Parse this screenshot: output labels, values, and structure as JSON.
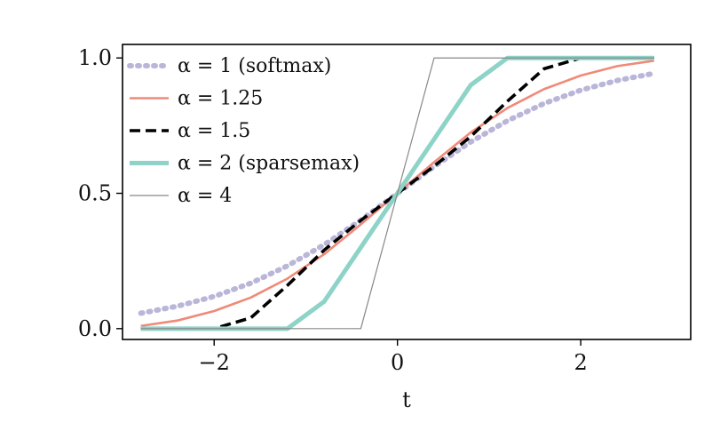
{
  "chart_data": {
    "type": "line",
    "title": "",
    "xlabel": "t",
    "ylabel": "",
    "xlim": [
      -3.0,
      3.2
    ],
    "ylim": [
      -0.04,
      1.05
    ],
    "xticks": [
      -2,
      0,
      2
    ],
    "xtick_labels": [
      "−2",
      "0",
      "2"
    ],
    "yticks": [
      0.0,
      0.5,
      1.0
    ],
    "ytick_labels": [
      "0.0",
      "0.5",
      "1.0"
    ],
    "grid": false,
    "legend_position": "top-left",
    "x": [
      -2.8,
      -2.4,
      -2.0,
      -1.6,
      -1.2,
      -0.8,
      -0.4,
      0.0,
      0.4,
      0.8,
      1.2,
      1.6,
      2.0,
      2.4,
      2.8
    ],
    "series": [
      {
        "name": "α = 1 (softmax)",
        "color": "#b9b6d8",
        "style": "dotted",
        "values": [
          0.057,
          0.083,
          0.119,
          0.168,
          0.232,
          0.31,
          0.401,
          0.5,
          0.599,
          0.69,
          0.768,
          0.832,
          0.881,
          0.917,
          0.943
        ]
      },
      {
        "name": "α = 1.25",
        "color": "#f08a78",
        "style": "solid",
        "values": [
          0.01,
          0.03,
          0.065,
          0.115,
          0.185,
          0.275,
          0.385,
          0.5,
          0.615,
          0.725,
          0.815,
          0.885,
          0.935,
          0.97,
          0.99
        ]
      },
      {
        "name": "α = 1.5",
        "color": "#000000",
        "style": "dashed",
        "values": [
          0.0,
          0.0,
          0.0,
          0.04,
          0.16,
          0.29,
          0.4,
          0.5,
          0.6,
          0.71,
          0.84,
          0.96,
          1.0,
          1.0,
          1.0
        ]
      },
      {
        "name": "α = 2 (sparsemax)",
        "color": "#8dd3c7",
        "style": "solid-thick",
        "values": [
          0.0,
          0.0,
          0.0,
          0.0,
          0.0,
          0.1,
          0.3,
          0.5,
          0.7,
          0.9,
          1.0,
          1.0,
          1.0,
          1.0,
          1.0
        ]
      },
      {
        "name": "α = 4",
        "color": "#888888",
        "style": "solid-thin",
        "values": [
          0.0,
          0.0,
          0.0,
          0.0,
          0.0,
          0.0,
          0.0,
          0.5,
          1.0,
          1.0,
          1.0,
          1.0,
          1.0,
          1.0,
          1.0
        ]
      }
    ]
  }
}
